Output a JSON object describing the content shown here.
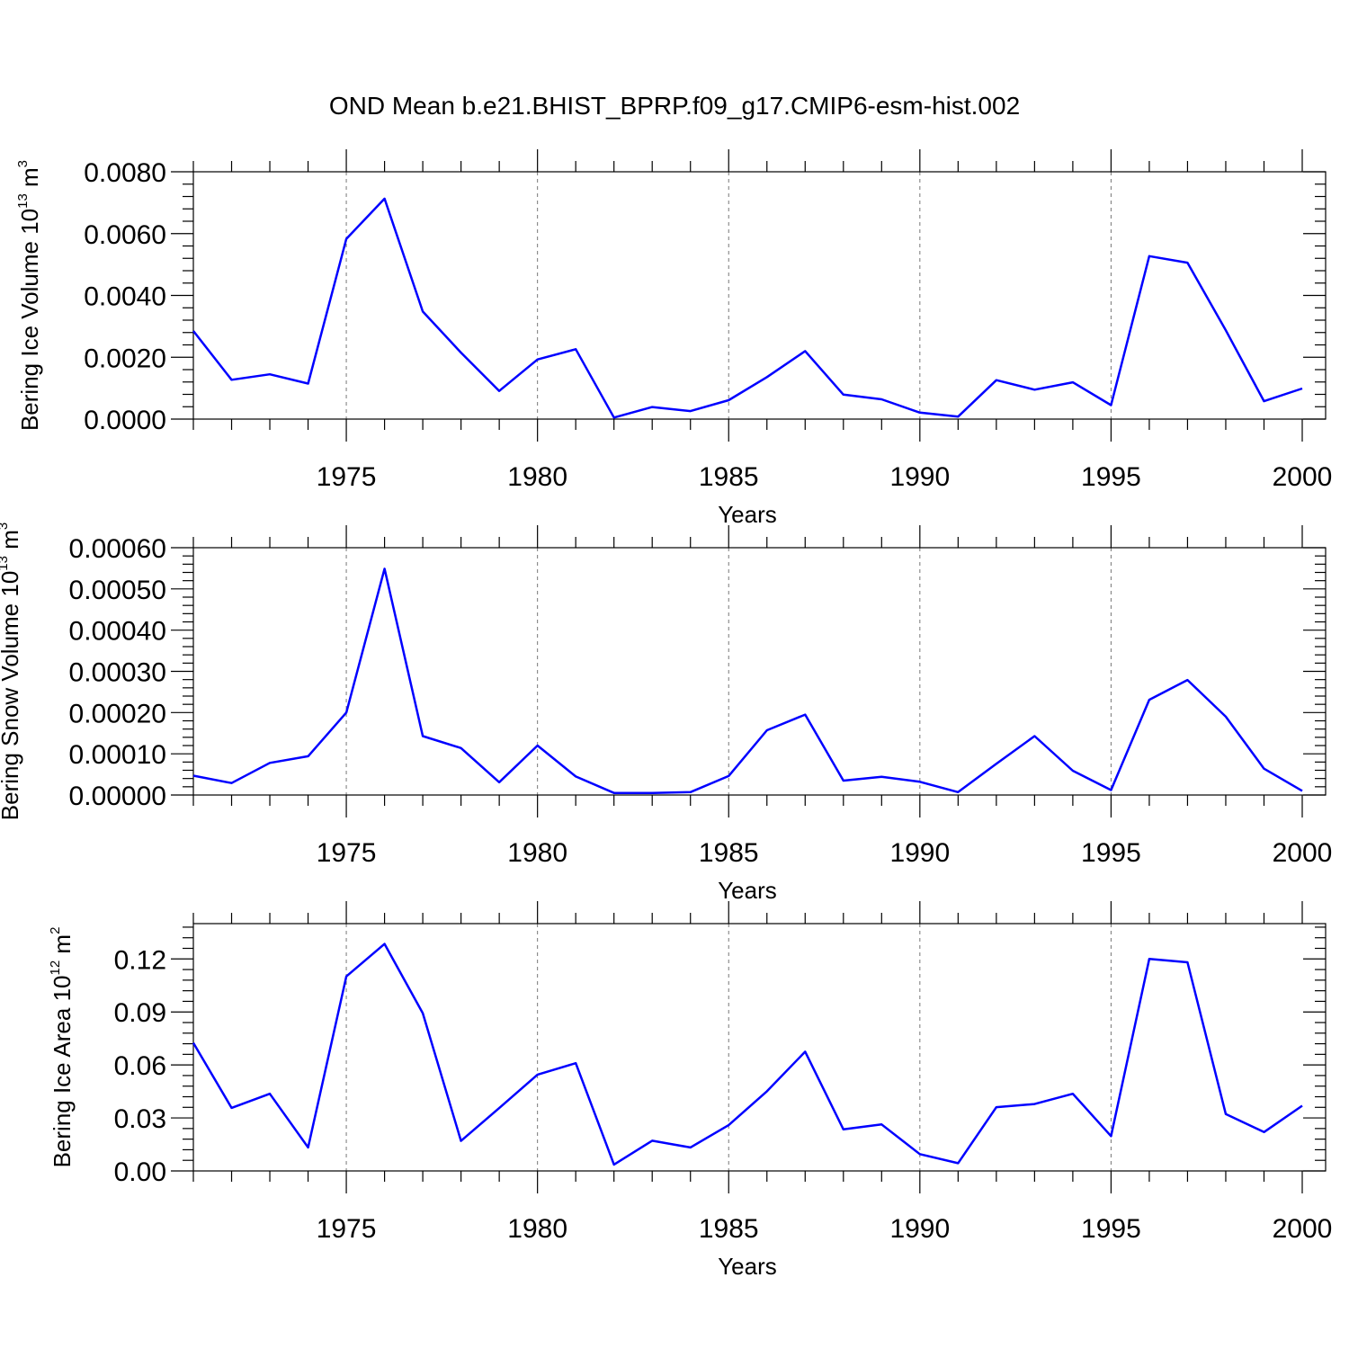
{
  "figure_title": "OND Mean b.e21.BHIST_BPRP.f09_g17.CMIP6-esm-hist.002",
  "colors": {
    "series": "#0000ff",
    "axes": "#000000",
    "grid": "#777777"
  },
  "chart_data": [
    {
      "type": "line",
      "ylabel_text": "Bering Ice Volume 10",
      "ylabel_exp": "13",
      "ylabel_unit": "m",
      "ylabel_unit_exp": "3",
      "xlabel": "Years",
      "xlim": [
        1971,
        2000
      ],
      "ylim": [
        0.0,
        0.008
      ],
      "x_ticks": [
        1975,
        1980,
        1985,
        1990,
        1995,
        2000
      ],
      "y_ticks": [
        0.0,
        0.002,
        0.004,
        0.006,
        0.008
      ],
      "y_tick_labels": [
        "0.0000",
        "0.0020",
        "0.0040",
        "0.0060",
        "0.0080"
      ],
      "x": [
        1971,
        1972,
        1973,
        1974,
        1975,
        1976,
        1977,
        1978,
        1979,
        1980,
        1981,
        1982,
        1983,
        1984,
        1985,
        1986,
        1987,
        1988,
        1989,
        1990,
        1991,
        1992,
        1993,
        1994,
        1995,
        1996,
        1997,
        1998,
        1999,
        2000
      ],
      "values": [
        0.00285,
        0.00127,
        0.00145,
        0.00115,
        0.00583,
        0.00713,
        0.00348,
        0.00215,
        0.00091,
        0.00193,
        0.00226,
        5e-05,
        0.00039,
        0.00026,
        0.00061,
        0.00136,
        0.0022,
        0.00079,
        0.00064,
        0.00021,
        8e-05,
        0.00126,
        0.00095,
        0.00119,
        0.00045,
        0.00527,
        0.00506,
        0.00287,
        0.00058,
        0.00099
      ]
    },
    {
      "type": "line",
      "ylabel_text": "Bering Snow Volume 10",
      "ylabel_exp": "13",
      "ylabel_unit": "m",
      "ylabel_unit_exp": "3",
      "xlabel": "Years",
      "xlim": [
        1971,
        2000
      ],
      "ylim": [
        0.0,
        0.0006
      ],
      "x_ticks": [
        1975,
        1980,
        1985,
        1990,
        1995,
        2000
      ],
      "y_ticks": [
        0.0,
        0.0001,
        0.0002,
        0.0003,
        0.0004,
        0.0005,
        0.0006
      ],
      "y_tick_labels": [
        "0.00000",
        "0.00010",
        "0.00020",
        "0.00030",
        "0.00040",
        "0.00050",
        "0.00060"
      ],
      "x": [
        1971,
        1972,
        1973,
        1974,
        1975,
        1976,
        1977,
        1978,
        1979,
        1980,
        1981,
        1982,
        1983,
        1984,
        1985,
        1986,
        1987,
        1988,
        1989,
        1990,
        1991,
        1992,
        1993,
        1994,
        1995,
        1996,
        1997,
        1998,
        1999,
        2000
      ],
      "values": [
        4.7e-05,
        2.9e-05,
        7.8e-05,
        9.4e-05,
        0.0002,
        0.000549,
        0.000143,
        0.000114,
        3.1e-05,
        0.00012,
        4.5e-05,
        5e-06,
        5e-06,
        7e-06,
        4.6e-05,
        0.000157,
        0.000195,
        3.5e-05,
        4.4e-05,
        3.2e-05,
        7e-06,
        7.6e-05,
        0.000143,
        5.9e-05,
        1.2e-05,
        0.000231,
        0.000279,
        0.00019,
        6.4e-05,
        1e-05
      ]
    },
    {
      "type": "line",
      "ylabel_text": "Bering Ice Area 10",
      "ylabel_exp": "12",
      "ylabel_unit": "m",
      "ylabel_unit_exp": "2",
      "xlabel": "Years",
      "xlim": [
        1971,
        2000
      ],
      "ylim": [
        0.0,
        0.14
      ],
      "x_ticks": [
        1975,
        1980,
        1985,
        1990,
        1995,
        2000
      ],
      "y_ticks": [
        0.0,
        0.03,
        0.06,
        0.09,
        0.12
      ],
      "y_tick_labels": [
        "0.00",
        "0.03",
        "0.06",
        "0.09",
        "0.12"
      ],
      "x": [
        1971,
        1972,
        1973,
        1974,
        1975,
        1976,
        1977,
        1978,
        1979,
        1980,
        1981,
        1982,
        1983,
        1984,
        1985,
        1986,
        1987,
        1988,
        1989,
        1990,
        1991,
        1992,
        1993,
        1994,
        1995,
        1996,
        1997,
        1998,
        1999,
        2000
      ],
      "values": [
        0.0725,
        0.0357,
        0.0437,
        0.0133,
        0.1101,
        0.1285,
        0.0893,
        0.017,
        0.0356,
        0.0545,
        0.061,
        0.0036,
        0.0171,
        0.0133,
        0.0259,
        0.0451,
        0.0675,
        0.0235,
        0.0263,
        0.0095,
        0.0044,
        0.0361,
        0.0379,
        0.0437,
        0.0197,
        0.12,
        0.1181,
        0.0322,
        0.022,
        0.0369
      ]
    }
  ]
}
